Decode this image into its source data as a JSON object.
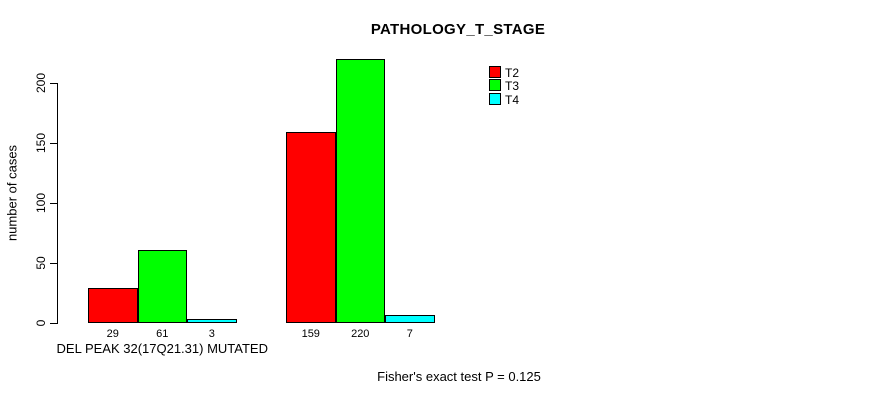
{
  "chart_data": {
    "type": "bar",
    "title": "PATHOLOGY_T_STAGE",
    "ylabel": "number of cases",
    "xlabel": "DEL PEAK 32(17Q21.31) MUTATED",
    "annotation": "Fisher's exact test P = 0.125",
    "categories": [
      "DEL PEAK 32(17Q21.31) MUTATED",
      ""
    ],
    "series": [
      {
        "name": "T2",
        "color": "#FF0000",
        "values": [
          29,
          159
        ]
      },
      {
        "name": "T3",
        "color": "#00FF00",
        "values": [
          61,
          220
        ]
      },
      {
        "name": "T4",
        "color": "#00FFFF",
        "values": [
          3,
          7
        ]
      }
    ],
    "bar_value_labels": [
      [
        29,
        61,
        3
      ],
      [
        159,
        220,
        7
      ]
    ],
    "yticks": [
      0,
      50,
      100,
      150,
      200
    ],
    "ylim": [
      0,
      220
    ],
    "grid": false,
    "legend_position": "top-right",
    "legend": [
      {
        "label": "T2",
        "color": "#FF0000"
      },
      {
        "label": "T3",
        "color": "#00FF00"
      },
      {
        "label": "T4",
        "color": "#00FFFF"
      }
    ],
    "background": "#FFFFFF",
    "axis_color": "#000000"
  }
}
